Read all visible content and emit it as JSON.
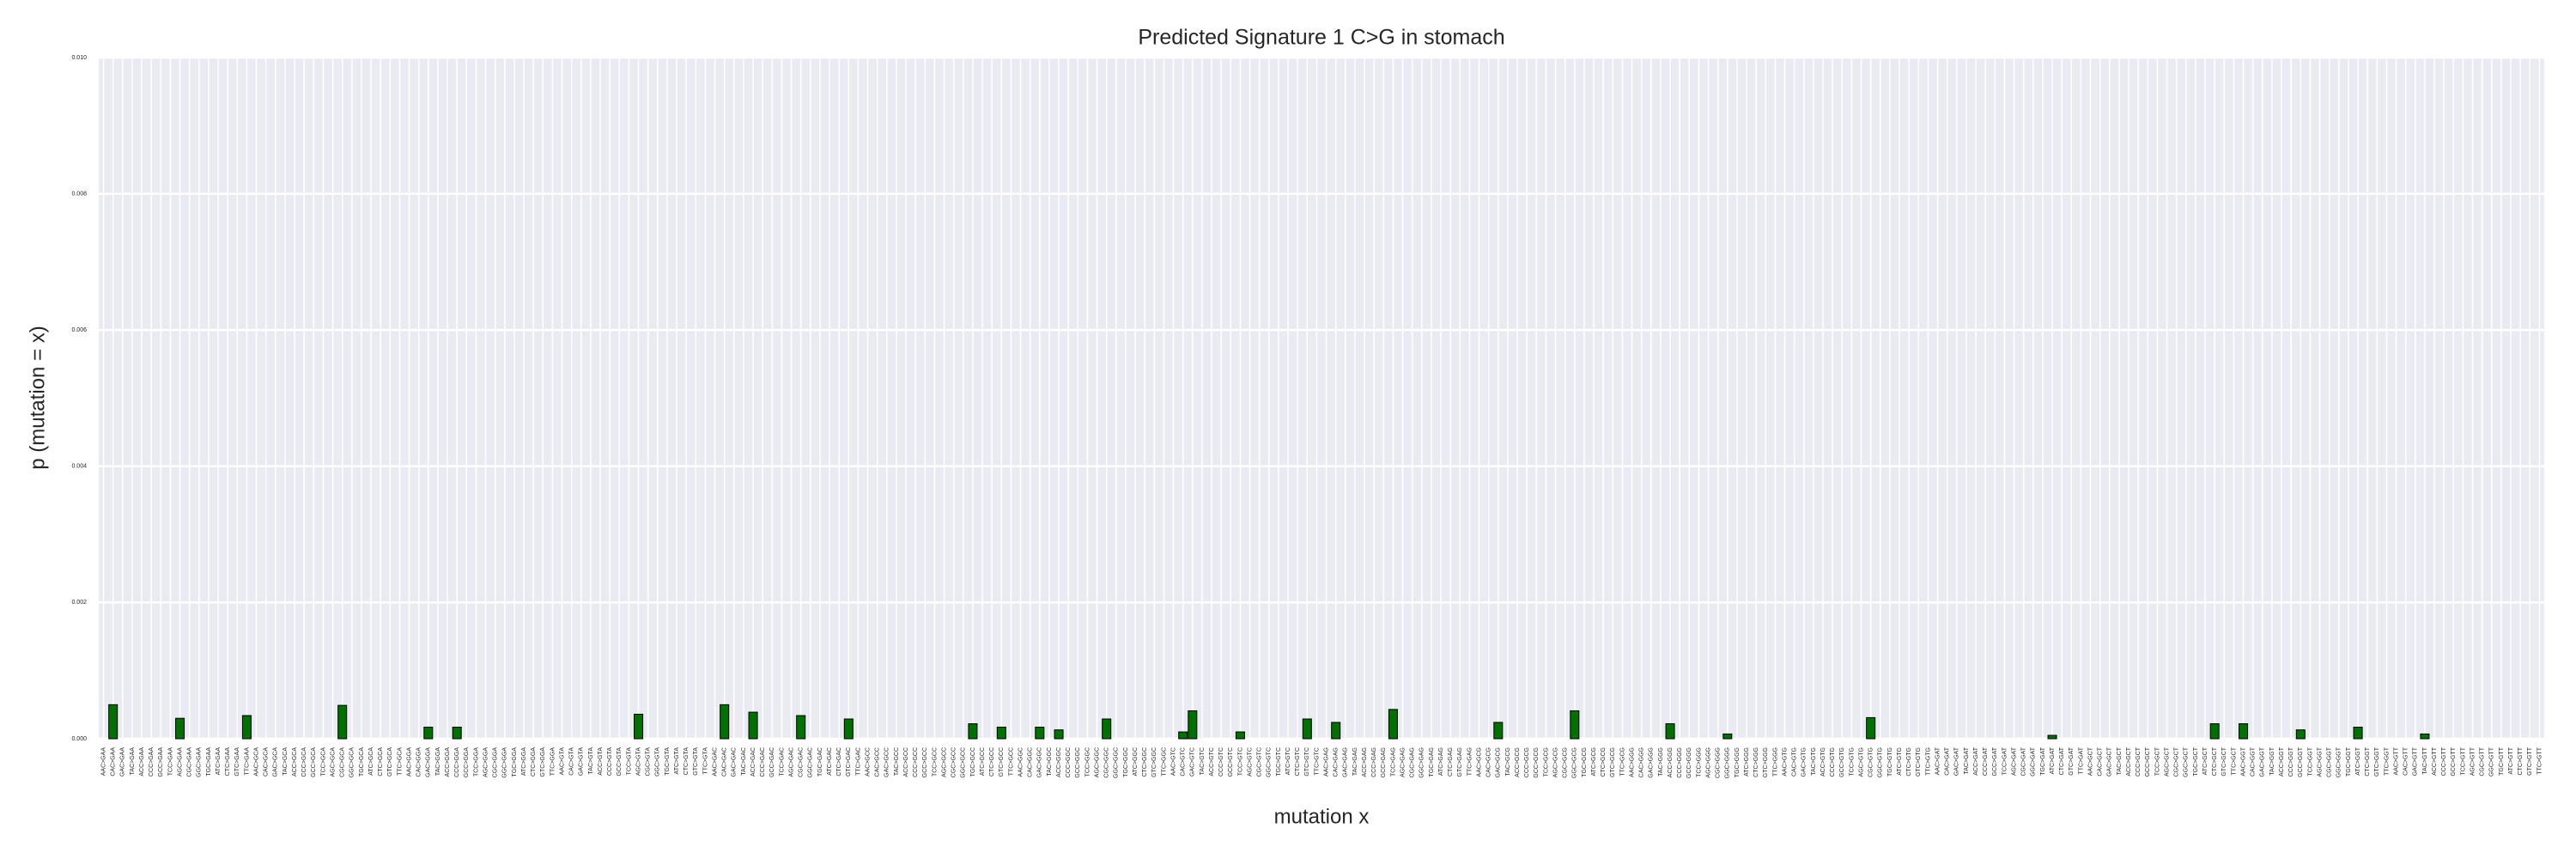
{
  "chart_data": {
    "type": "bar",
    "title": "Predicted Signature 1 C>G in stomach",
    "xlabel": "mutation x",
    "ylabel": "p (mutation = x)",
    "color": "#007000",
    "ylim": [
      0,
      0.01
    ],
    "yticks": [
      {
        "value": 0,
        "label": "0.000"
      },
      {
        "value": 0.002,
        "label": "0.002"
      },
      {
        "value": 0.004,
        "label": "0.004"
      },
      {
        "value": 0.006,
        "label": "0.006"
      },
      {
        "value": 0.008,
        "label": "0.008"
      },
      {
        "value": 0.01,
        "label": "0.010"
      }
    ],
    "grid": true,
    "categories": [
      "AAC>GAA",
      "CAC>GAA",
      "GAC>GAA",
      "TAC>GAA",
      "ACC>GAA",
      "CCC>GAA",
      "GCC>GAA",
      "TCC>GAA",
      "AGC>GAA",
      "CGC>GAA",
      "GGC>GAA",
      "TGC>GAA",
      "ATC>GAA",
      "CTC>GAA",
      "GTC>GAA",
      "TTC>GAA",
      "AAC>GCA",
      "CAC>GCA",
      "GAC>GCA",
      "TAC>GCA",
      "ACC>GCA",
      "CCC>GCA",
      "GCC>GCA",
      "TCC>GCA",
      "AGC>GCA",
      "CGC>GCA",
      "GGC>GCA",
      "TGC>GCA",
      "ATC>GCA",
      "CTC>GCA",
      "GTC>GCA",
      "TTC>GCA",
      "AAC>GGA",
      "CAC>GGA",
      "GAC>GGA",
      "TAC>GGA",
      "ACC>GGA",
      "CCC>GGA",
      "GCC>GGA",
      "TCC>GGA",
      "AGC>GGA",
      "CGC>GGA",
      "GGC>GGA",
      "TGC>GGA",
      "ATC>GGA",
      "CTC>GGA",
      "GTC>GGA",
      "TTC>GGA",
      "AAC>GTA",
      "CAC>GTA",
      "GAC>GTA",
      "TAC>GTA",
      "ACC>GTA",
      "CCC>GTA",
      "GCC>GTA",
      "TCC>GTA",
      "AGC>GTA",
      "CGC>GTA",
      "GGC>GTA",
      "TGC>GTA",
      "ATC>GTA",
      "CTC>GTA",
      "GTC>GTA",
      "TTC>GTA",
      "AAC>GAC",
      "CAC>GAC",
      "GAC>GAC",
      "TAC>GAC",
      "ACC>GAC",
      "CCC>GAC",
      "GCC>GAC",
      "TCC>GAC",
      "AGC>GAC",
      "CGC>GAC",
      "GGC>GAC",
      "TGC>GAC",
      "ATC>GAC",
      "CTC>GAC",
      "GTC>GAC",
      "TTC>GAC",
      "AAC>GCC",
      "CAC>GCC",
      "GAC>GCC",
      "TAC>GCC",
      "ACC>GCC",
      "CCC>GCC",
      "GCC>GCC",
      "TCC>GCC",
      "AGC>GCC",
      "CGC>GCC",
      "GGC>GCC",
      "TGC>GCC",
      "ATC>GCC",
      "CTC>GCC",
      "GTC>GCC",
      "TTC>GCC",
      "AAC>GGC",
      "CAC>GGC",
      "GAC>GGC",
      "TAC>GGC",
      "ACC>GGC",
      "CCC>GGC",
      "GCC>GGC",
      "TCC>GGC",
      "AGC>GGC",
      "CGC>GGC",
      "GGC>GGC",
      "TGC>GGC",
      "ATC>GGC",
      "CTC>GGC",
      "GTC>GGC",
      "TTC>GGC",
      "AAC>GTC",
      "CAC>GTC",
      "GAC>GTC",
      "TAC>GTC",
      "ACC>GTC",
      "CCC>GTC",
      "GCC>GTC",
      "TCC>GTC",
      "AGC>GTC",
      "CGC>GTC",
      "GGC>GTC",
      "TGC>GTC",
      "ATC>GTC",
      "CTC>GTC",
      "GTC>GTC",
      "TTC>GTC",
      "AAC>GAG",
      "CAC>GAG",
      "GAC>GAG",
      "TAC>GAG",
      "ACC>GAG",
      "CCC>GAG",
      "GCC>GAG",
      "TCC>GAG",
      "AGC>GAG",
      "CGC>GAG",
      "GGC>GAG",
      "TGC>GAG",
      "ATC>GAG",
      "CTC>GAG",
      "GTC>GAG",
      "TTC>GAG",
      "AAC>GCG",
      "CAC>GCG",
      "GAC>GCG",
      "TAC>GCG",
      "ACC>GCG",
      "CCC>GCG",
      "GCC>GCG",
      "TCC>GCG",
      "AGC>GCG",
      "CGC>GCG",
      "GGC>GCG",
      "TGC>GCG",
      "ATC>GCG",
      "CTC>GCG",
      "GTC>GCG",
      "TTC>GCG",
      "AAC>GGG",
      "CAC>GGG",
      "GAC>GGG",
      "TAC>GGG",
      "ACC>GGG",
      "CCC>GGG",
      "GCC>GGG",
      "TCC>GGG",
      "AGC>GGG",
      "CGC>GGG",
      "GGC>GGG",
      "TGC>GGG",
      "ATC>GGG",
      "CTC>GGG",
      "GTC>GGG",
      "TTC>GGG",
      "AAC>GTG",
      "CAC>GTG",
      "GAC>GTG",
      "TAC>GTG",
      "ACC>GTG",
      "CCC>GTG",
      "GCC>GTG",
      "TCC>GTG",
      "AGC>GTG",
      "CGC>GTG",
      "GGC>GTG",
      "TGC>GTG",
      "ATC>GTG",
      "CTC>GTG",
      "GTC>GTG",
      "TTC>GTG",
      "AAC>GAT",
      "CAC>GAT",
      "GAC>GAT",
      "TAC>GAT",
      "ACC>GAT",
      "CCC>GAT",
      "GCC>GAT",
      "TCC>GAT",
      "AGC>GAT",
      "CGC>GAT",
      "GGC>GAT",
      "TGC>GAT",
      "ATC>GAT",
      "CTC>GAT",
      "GTC>GAT",
      "TTC>GAT",
      "AAC>GCT",
      "CAC>GCT",
      "GAC>GCT",
      "TAC>GCT",
      "ACC>GCT",
      "CCC>GCT",
      "GCC>GCT",
      "TCC>GCT",
      "AGC>GCT",
      "CGC>GCT",
      "GGC>GCT",
      "TGC>GCT",
      "ATC>GCT",
      "CTC>GCT",
      "GTC>GCT",
      "TTC>GCT",
      "AAC>GGT",
      "CAC>GGT",
      "GAC>GGT",
      "TAC>GGT",
      "ACC>GGT",
      "CCC>GGT",
      "GCC>GGT",
      "TCC>GGT",
      "AGC>GGT",
      "CGC>GGT",
      "GGC>GGT",
      "TGC>GGT",
      "ATC>GGT",
      "CTC>GGT",
      "GTC>GGT",
      "TTC>GGT",
      "AAC>GTT",
      "CAC>GTT",
      "GAC>GTT",
      "TAC>GTT",
      "ACC>GTT",
      "CCC>GTT",
      "GCC>GTT",
      "TCC>GTT",
      "AGC>GTT",
      "CGC>GTT",
      "GGC>GTT",
      "TGC>GTT",
      "ATC>GTT",
      "CTC>GTT",
      "GTC>GTT",
      "TTC>GTT"
    ],
    "values": [
      0,
      0.0005,
      0,
      0,
      0,
      0,
      0,
      0,
      0.0003,
      0,
      0,
      0,
      0,
      0,
      0,
      0.00034,
      0,
      0,
      0,
      0,
      0,
      0,
      0,
      0,
      0,
      0.00049,
      0,
      0,
      0,
      0,
      0,
      0,
      0,
      0,
      0.00017,
      0,
      0,
      0.00017,
      0,
      0,
      0,
      0,
      0,
      0,
      0,
      0,
      0,
      0,
      0,
      0,
      0,
      0,
      0,
      0,
      0,
      0,
      0.00036,
      0,
      0,
      0,
      0,
      0,
      0,
      0,
      0,
      0.0005,
      0,
      0,
      0.00039,
      0,
      0,
      0,
      0,
      0.00034,
      0,
      0,
      0,
      0,
      0.00029,
      0,
      0,
      0,
      0,
      0,
      0,
      0,
      0,
      0,
      0,
      0,
      0,
      0.00022,
      0,
      0,
      0.00017,
      0,
      0,
      0,
      0.00017,
      0,
      0.00013,
      0,
      0,
      0,
      0,
      0.00029,
      0,
      0,
      0,
      0,
      0,
      0,
      0,
      0.0001,
      0.00041,
      0,
      0,
      0,
      0,
      0.0001,
      0,
      0,
      0,
      0,
      0,
      0,
      0.00029,
      0,
      0,
      0.00024,
      0,
      0,
      0,
      0,
      0,
      0.00043,
      0,
      0,
      0,
      0,
      0,
      0,
      0,
      0,
      0,
      0,
      0.00024,
      0,
      0,
      0,
      0,
      0,
      0,
      0,
      0.00041,
      0,
      0,
      0,
      0,
      0,
      0,
      0,
      0,
      0,
      0.00022,
      0,
      0,
      0,
      0,
      0,
      7e-05,
      0,
      0,
      0,
      0,
      0,
      0,
      0,
      0,
      0,
      0,
      0,
      0,
      0,
      0,
      0.00031,
      0,
      0,
      0,
      0,
      0,
      0,
      0,
      0,
      0,
      0,
      0,
      0,
      0,
      0,
      0,
      0,
      0,
      0,
      5e-05,
      0,
      0,
      0,
      0,
      0,
      0,
      0,
      0,
      0,
      0,
      0,
      0,
      0,
      0,
      0,
      0,
      0.00022,
      0,
      0,
      0.00022,
      0,
      0,
      0,
      0,
      0,
      0.00013,
      0,
      0,
      0,
      0,
      0,
      0.00017,
      0,
      0,
      0,
      0,
      0,
      0,
      7e-05,
      0,
      0,
      0,
      0,
      0,
      0,
      0,
      0,
      0,
      0,
      0,
      0
    ]
  }
}
